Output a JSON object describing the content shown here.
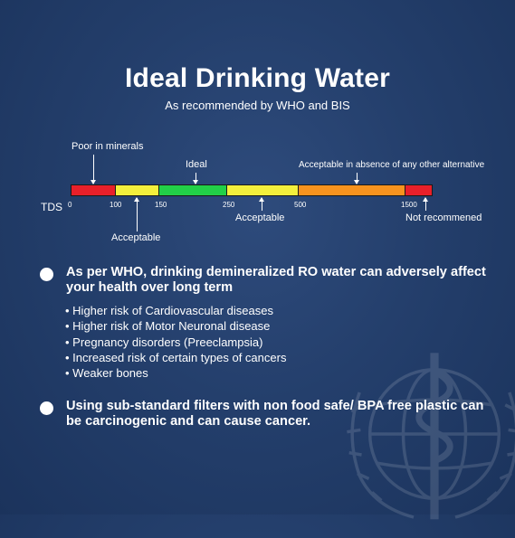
{
  "title": "Ideal Drinking Water",
  "subtitle": "As recommended by WHO and BIS",
  "scale": {
    "axis_label": "TDS",
    "ticks": [
      "0",
      "100",
      "150",
      "250",
      "500",
      "1500"
    ],
    "segments": [
      {
        "from": 0,
        "to": 100,
        "color": "#e8202a"
      },
      {
        "from": 100,
        "to": 150,
        "color": "#f3ef3c"
      },
      {
        "from": 150,
        "to": 250,
        "color": "#22d048"
      },
      {
        "from": 250,
        "to": 500,
        "color": "#f3ef3c"
      },
      {
        "from": 500,
        "to": 1500,
        "color": "#f7931e"
      },
      {
        "from": 1500,
        "to": null,
        "color": "#e8202a"
      }
    ],
    "labels": {
      "poor": "Poor in minerals",
      "ideal": "Ideal",
      "acceptable_alt": "Acceptable in absence of any other alternative",
      "acceptable_low": "Acceptable",
      "acceptable_high": "Acceptable",
      "not_recommended": "Not recommened"
    }
  },
  "points": [
    {
      "text": "As per WHO, drinking demineralized RO water can adversely affect your health over long term",
      "bullets": [
        "Higher risk of Cardiovascular diseases",
        "Higher risk of Motor Neuronal disease",
        "Pregnancy disorders (Preeclampsia)",
        "Increased risk of certain types of cancers",
        "Weaker bones"
      ]
    },
    {
      "text": "Using sub-standard filters with non food safe/ BPA free plastic can be carcinogenic and can cause cancer."
    }
  ]
}
